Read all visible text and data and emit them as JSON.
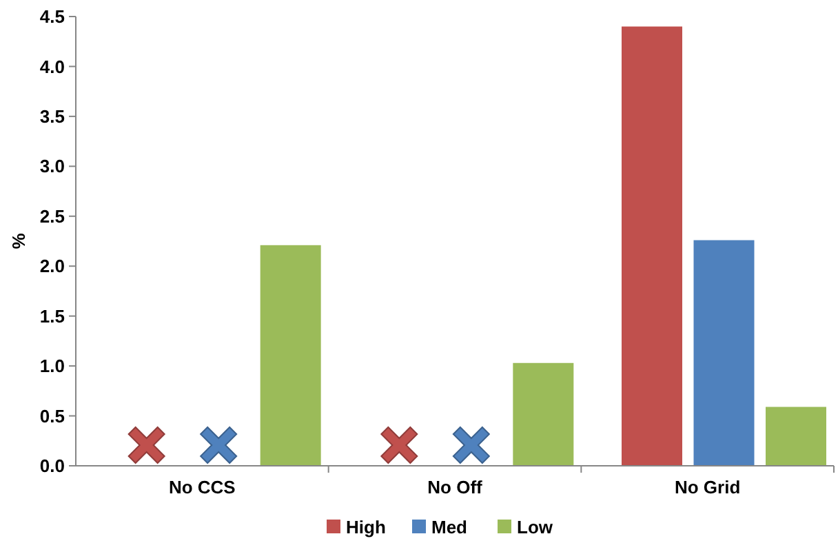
{
  "chart_data": {
    "type": "bar",
    "ylabel": "%",
    "categories": [
      "No CCS",
      "No Off",
      "No Grid"
    ],
    "series": [
      {
        "name": "High",
        "color": "#c0504d",
        "values": [
          null,
          null,
          4.4
        ]
      },
      {
        "name": "Med",
        "color": "#4f81bd",
        "values": [
          null,
          null,
          2.26
        ]
      },
      {
        "name": "Low",
        "color": "#9bbb59",
        "values": [
          2.21,
          1.03,
          0.59
        ]
      }
    ],
    "ylim": [
      0,
      4.5
    ],
    "yticks": [
      {
        "value": 0,
        "label": "0.0"
      },
      {
        "value": 0.5,
        "label": "0.5"
      },
      {
        "value": 1,
        "label": "1.0"
      },
      {
        "value": 1.5,
        "label": "1.5"
      },
      {
        "value": 2,
        "label": "2.0"
      },
      {
        "value": 2.5,
        "label": "2.5"
      },
      {
        "value": 3,
        "label": "3.0"
      },
      {
        "value": 3.5,
        "label": "3.5"
      },
      {
        "value": 4,
        "label": "4.0"
      },
      {
        "value": 4.5,
        "label": "4.5"
      }
    ],
    "grid": false,
    "legend": "bottom"
  }
}
